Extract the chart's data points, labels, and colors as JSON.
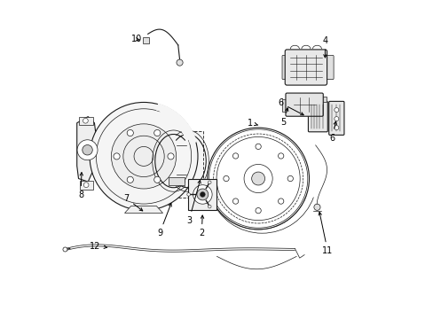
{
  "bg_color": "#ffffff",
  "line_color": "#1a1a1a",
  "figsize": [
    4.89,
    3.6
  ],
  "dpi": 100,
  "labels": {
    "1": [
      0.62,
      0.565,
      0.598,
      0.61
    ],
    "2": [
      0.455,
      0.265,
      0.455,
      0.31
    ],
    "3": [
      0.415,
      0.305,
      0.415,
      0.36
    ],
    "4": [
      0.82,
      0.87,
      0.785,
      0.86
    ],
    "5": [
      0.715,
      0.62,
      0.72,
      0.635
    ],
    "6a": [
      0.7,
      0.68,
      0.715,
      0.68
    ],
    "6b": [
      0.86,
      0.57,
      0.86,
      0.585
    ],
    "7": [
      0.215,
      0.38,
      0.23,
      0.415
    ],
    "8": [
      0.075,
      0.39,
      0.085,
      0.435
    ],
    "9": [
      0.32,
      0.27,
      0.345,
      0.33
    ],
    "10": [
      0.255,
      0.875,
      0.275,
      0.875
    ],
    "11": [
      0.845,
      0.215,
      0.845,
      0.235
    ],
    "12": [
      0.12,
      0.23,
      0.165,
      0.25
    ]
  }
}
